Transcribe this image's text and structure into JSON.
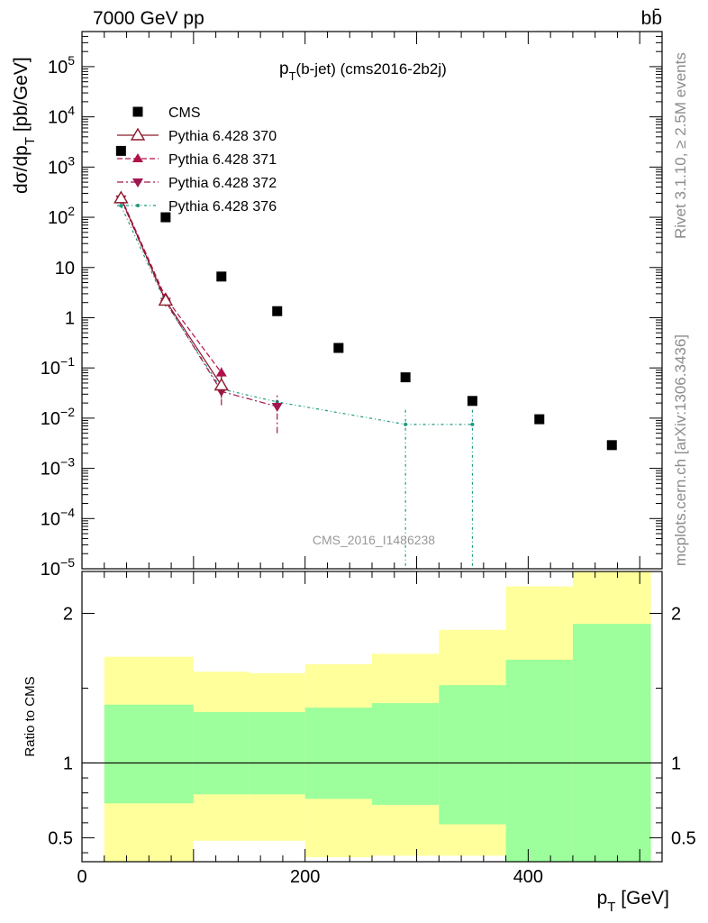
{
  "header": {
    "left": "7000 GeV pp",
    "right": "bb̄"
  },
  "side_labels": {
    "rivet": "Rivet 3.1.10, ≥ 2.5M events",
    "mcplots": "mcplots.cern.ch [arXiv:1306.3436]"
  },
  "chart_data": [
    {
      "type": "scatter",
      "title_main": "p",
      "title_sub": "T",
      "title_rest": "(b-jet) (cms2016-2b2j)",
      "ylabel_main": "dσ/dp",
      "ylabel_sub": "T",
      "ylabel_rest": " [pb/GeV]",
      "watermark": "CMS_2016_I1486238",
      "xlim": [
        0,
        520
      ],
      "ylim": [
        1e-05,
        500000
      ],
      "yscale": "log",
      "y_ticks": [
        {
          "v": 100000.0,
          "base": "10",
          "exp": "5"
        },
        {
          "v": 10000.0,
          "base": "10",
          "exp": "4"
        },
        {
          "v": 1000.0,
          "base": "10",
          "exp": "3"
        },
        {
          "v": 100.0,
          "base": "10",
          "exp": "2"
        },
        {
          "v": 10,
          "base": "10",
          "exp": ""
        },
        {
          "v": 1,
          "base": "1",
          "exp": ""
        },
        {
          "v": 0.1,
          "base": "10",
          "exp": "−1"
        },
        {
          "v": 0.01,
          "base": "10",
          "exp": "−2"
        },
        {
          "v": 0.001,
          "base": "10",
          "exp": "−3"
        },
        {
          "v": 0.0001,
          "base": "10",
          "exp": "−4"
        },
        {
          "v": 1e-05,
          "base": "10",
          "exp": "−5"
        }
      ],
      "series": [
        {
          "name": "CMS",
          "color": "#000000",
          "style": "square",
          "points": [
            {
              "x": 35,
              "y": 2100
            },
            {
              "x": 75,
              "y": 100
            },
            {
              "x": 125,
              "y": 6.6
            },
            {
              "x": 175,
              "y": 1.35
            },
            {
              "x": 230,
              "y": 0.25
            },
            {
              "x": 290,
              "y": 0.065
            },
            {
              "x": 350,
              "y": 0.022
            },
            {
              "x": 410,
              "y": 0.0095
            },
            {
              "x": 475,
              "y": 0.0029
            }
          ]
        },
        {
          "name": "Pythia 6.428 370",
          "color": "#8b1a2a",
          "style": "solid-open-triangle",
          "points": [
            {
              "x": 35,
              "y": 240
            },
            {
              "x": 75,
              "y": 2.2
            },
            {
              "x": 125,
              "y": 0.045,
              "ylo": 0.025,
              "yhi": 0.07
            }
          ]
        },
        {
          "name": "Pythia 6.428 371",
          "color": "#b0104a",
          "style": "dashed-filled-triangle",
          "points": [
            {
              "x": 35,
              "y": 250
            },
            {
              "x": 75,
              "y": 2.5
            },
            {
              "x": 125,
              "y": 0.08,
              "ylo": 0.055,
              "yhi": 0.105
            }
          ]
        },
        {
          "name": "Pythia 6.428 372",
          "color": "#a01850",
          "style": "dashdot-filled-triangle-down",
          "points": [
            {
              "x": 35,
              "y": 230
            },
            {
              "x": 75,
              "y": 2.1
            },
            {
              "x": 125,
              "y": 0.034,
              "ylo": 0.018,
              "yhi": 0.05
            },
            {
              "x": 175,
              "y": 0.017,
              "ylo": 0.005,
              "yhi": 0.03
            }
          ]
        },
        {
          "name": "Pythia 6.428 376",
          "color": "#1a9a80",
          "style": "dotted-dot",
          "points": [
            {
              "x": 35,
              "y": 170
            },
            {
              "x": 75,
              "y": 2.0
            },
            {
              "x": 125,
              "y": 0.038
            },
            {
              "x": 175,
              "y": 0.021
            },
            {
              "x": 290,
              "y": 0.0075,
              "ylo": 1e-06,
              "yhi": 0.015
            },
            {
              "x": 350,
              "y": 0.0075,
              "ylo": 1e-06,
              "yhi": 0.015
            }
          ]
        }
      ]
    },
    {
      "type": "area",
      "ylabel": "Ratio to CMS",
      "xlabel_main": "p",
      "xlabel_sub": "T",
      "xlabel_rest": " [GeV]",
      "xlim": [
        0,
        520
      ],
      "ylim": [
        0.34,
        2.28
      ],
      "x_ticks": [
        0,
        200,
        400
      ],
      "y_ticks": [
        0.5,
        1,
        2
      ],
      "reference_line": 1,
      "bins": [
        {
          "lo": 20,
          "hi": 100,
          "y1lo": 0.73,
          "y1hi": 1.39,
          "y2lo": 0.34,
          "y2hi": 1.71
        },
        {
          "lo": 100,
          "hi": 150,
          "y1lo": 0.79,
          "y1hi": 1.34,
          "y2lo": 0.48,
          "y2hi": 1.61
        },
        {
          "lo": 150,
          "hi": 200,
          "y1lo": 0.79,
          "y1hi": 1.34,
          "y2lo": 0.48,
          "y2hi": 1.6
        },
        {
          "lo": 200,
          "hi": 260,
          "y1lo": 0.76,
          "y1hi": 1.37,
          "y2lo": 0.37,
          "y2hi": 1.66
        },
        {
          "lo": 260,
          "hi": 320,
          "y1lo": 0.72,
          "y1hi": 1.4,
          "y2lo": 0.38,
          "y2hi": 1.73
        },
        {
          "lo": 320,
          "hi": 380,
          "y1lo": 0.59,
          "y1hi": 1.52,
          "y2lo": 0.38,
          "y2hi": 1.89
        },
        {
          "lo": 380,
          "hi": 440,
          "y1lo": 0.34,
          "y1hi": 1.69,
          "y2lo": 0.34,
          "y2hi": 2.18
        },
        {
          "lo": 440,
          "hi": 510,
          "y1lo": 0.34,
          "y1hi": 1.93,
          "y2lo": 0.34,
          "y2hi": 2.28
        }
      ],
      "colors": {
        "inner": "#9cff9c",
        "outer": "#ffff9c"
      }
    }
  ]
}
